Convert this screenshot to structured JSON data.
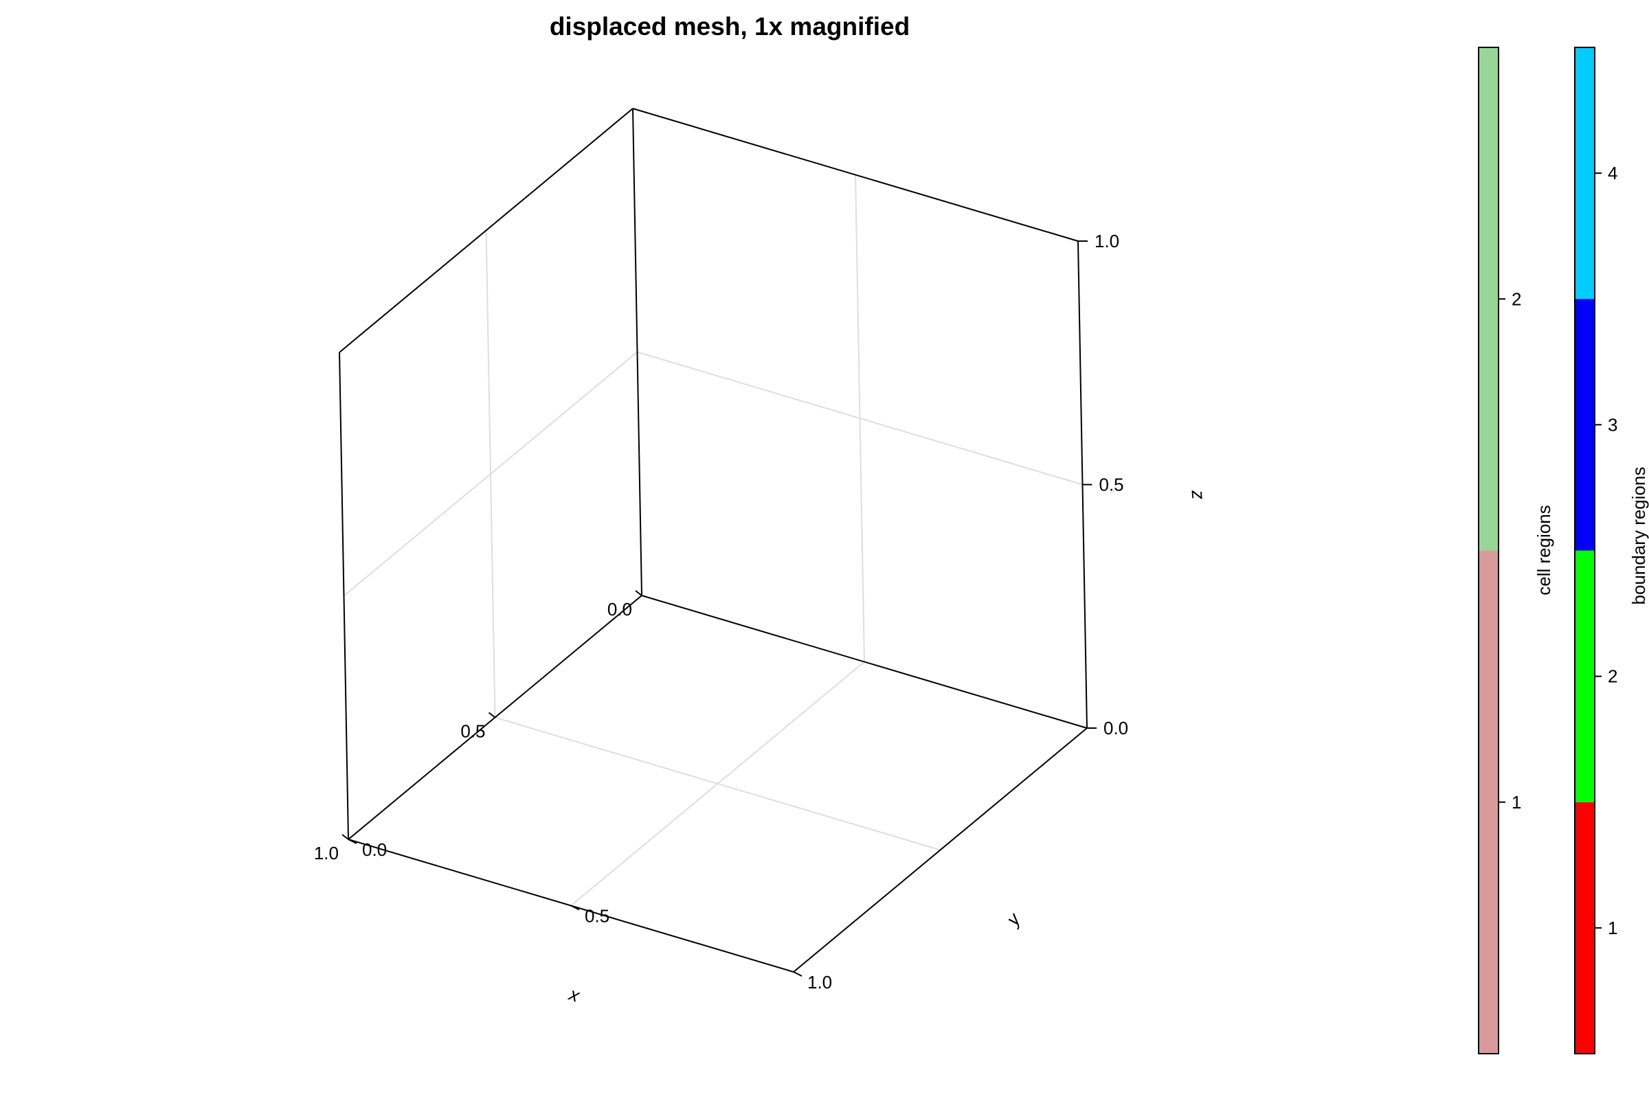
{
  "chart_data": {
    "type": "3d-axes",
    "title": "displaced mesh, 1x magnified",
    "axes": {
      "x": {
        "label": "x",
        "range": [
          0.0,
          1.0
        ],
        "ticks": [
          0.0,
          0.5,
          1.0
        ],
        "tick_labels": [
          "0.0",
          "0.5",
          "1.0"
        ]
      },
      "y": {
        "label": "y",
        "range": [
          0.0,
          1.0
        ],
        "ticks": [
          0.0,
          0.5,
          1.0
        ],
        "tick_labels": [
          "0.0",
          "0.5",
          "1.0"
        ]
      },
      "z": {
        "label": "z",
        "range": [
          0.0,
          1.0
        ],
        "ticks": [
          0.0,
          0.5,
          1.0
        ],
        "tick_labels": [
          "0.0",
          "0.5",
          "1.0"
        ]
      }
    },
    "grid": true,
    "series": [],
    "colorbars": [
      {
        "label": "cell regions",
        "ticks": [
          "1",
          "2"
        ],
        "bins": [
          {
            "value": 1,
            "color": "#d89a9a"
          },
          {
            "value": 2,
            "color": "#98d698"
          }
        ]
      },
      {
        "label": "boundary regions",
        "ticks": [
          "1",
          "2",
          "3",
          "4"
        ],
        "bins": [
          {
            "value": 1,
            "color": "#ff0000"
          },
          {
            "value": 2,
            "color": "#00ff00"
          },
          {
            "value": 3,
            "color": "#0000ff"
          },
          {
            "value": 4,
            "color": "#00ccff"
          }
        ]
      }
    ]
  }
}
